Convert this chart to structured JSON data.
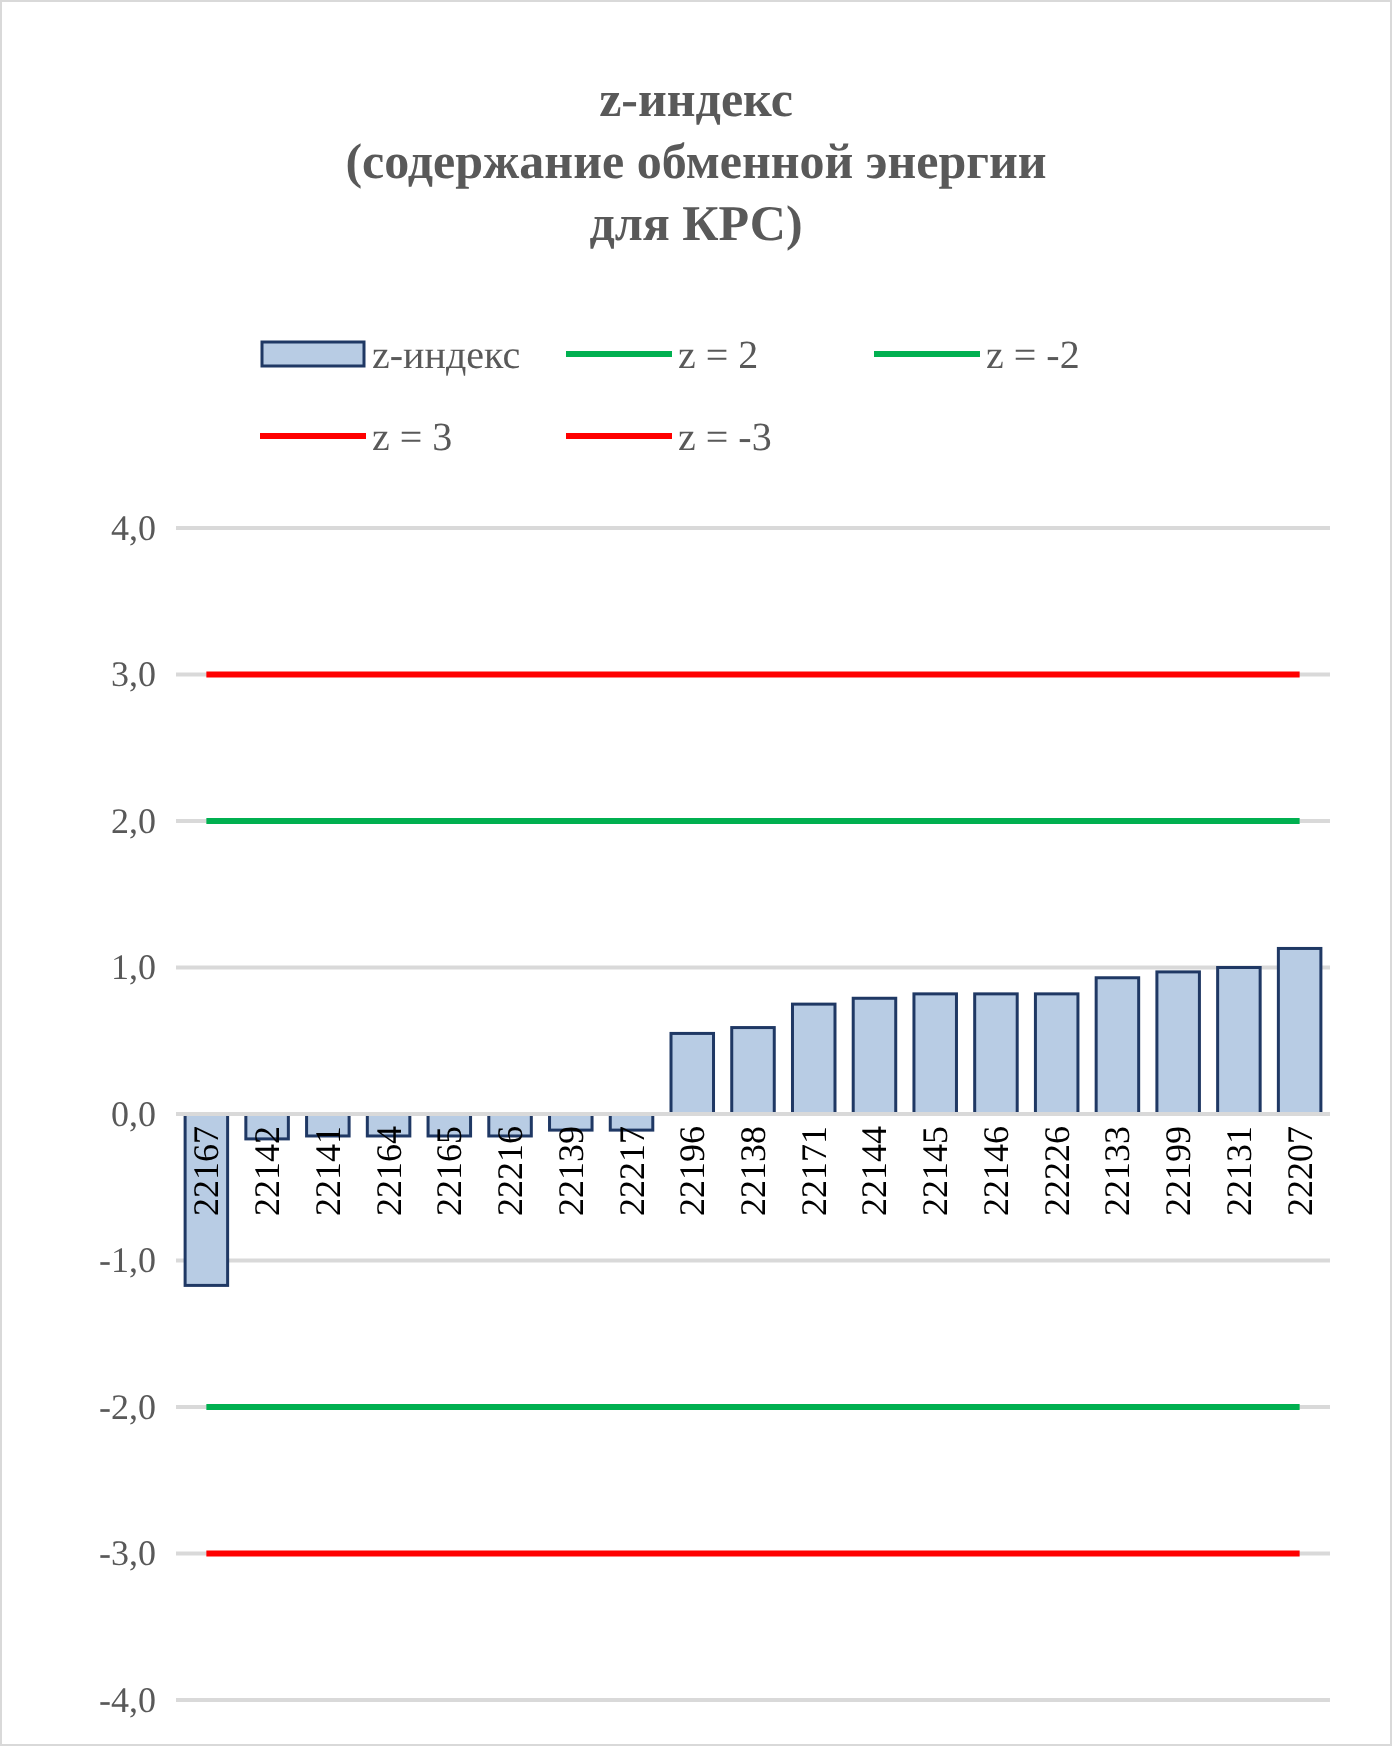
{
  "chart_data": {
    "type": "bar",
    "title": "z-индекс\n(содержание обменной энергии\nдля КРС)",
    "categories": [
      "22167",
      "22142",
      "22141",
      "22164",
      "22165",
      "22216",
      "22139",
      "22217",
      "22196",
      "22138",
      "22171",
      "22144",
      "22145",
      "22146",
      "22226",
      "22133",
      "22199",
      "22131",
      "22207"
    ],
    "series": [
      {
        "name": "z-индекс",
        "color": "#b8cce4",
        "values": [
          -1.17,
          -0.17,
          -0.15,
          -0.15,
          -0.15,
          -0.15,
          -0.11,
          -0.11,
          0.55,
          0.59,
          0.75,
          0.79,
          0.82,
          0.82,
          0.82,
          0.93,
          0.97,
          1.0,
          1.13
        ]
      },
      {
        "name": "z = 2",
        "type": "line",
        "color": "#00b050",
        "values": [
          2,
          2,
          2,
          2,
          2,
          2,
          2,
          2,
          2,
          2,
          2,
          2,
          2,
          2,
          2,
          2,
          2,
          2,
          2
        ]
      },
      {
        "name": "z = -2",
        "type": "line",
        "color": "#00b050",
        "values": [
          -2,
          -2,
          -2,
          -2,
          -2,
          -2,
          -2,
          -2,
          -2,
          -2,
          -2,
          -2,
          -2,
          -2,
          -2,
          -2,
          -2,
          -2,
          -2
        ]
      },
      {
        "name": "z = 3",
        "type": "line",
        "color": "#ff0000",
        "values": [
          3,
          3,
          3,
          3,
          3,
          3,
          3,
          3,
          3,
          3,
          3,
          3,
          3,
          3,
          3,
          3,
          3,
          3,
          3
        ]
      },
      {
        "name": "z = -3",
        "type": "line",
        "color": "#ff0000",
        "values": [
          -3,
          -3,
          -3,
          -3,
          -3,
          -3,
          -3,
          -3,
          -3,
          -3,
          -3,
          -3,
          -3,
          -3,
          -3,
          -3,
          -3,
          -3,
          -3
        ]
      }
    ],
    "ylim": [
      -4,
      4
    ],
    "yticks": [
      {
        "value": -4,
        "label": "-4,0"
      },
      {
        "value": -3,
        "label": "-3,0"
      },
      {
        "value": -2,
        "label": "-2,0"
      },
      {
        "value": -1,
        "label": "-1,0"
      },
      {
        "value": 0,
        "label": "0,0"
      },
      {
        "value": 1,
        "label": "1,0"
      },
      {
        "value": 2,
        "label": "2,0"
      },
      {
        "value": 3,
        "label": "3,0"
      },
      {
        "value": 4,
        "label": "4,0"
      }
    ],
    "grid": "y",
    "legend": "top"
  }
}
